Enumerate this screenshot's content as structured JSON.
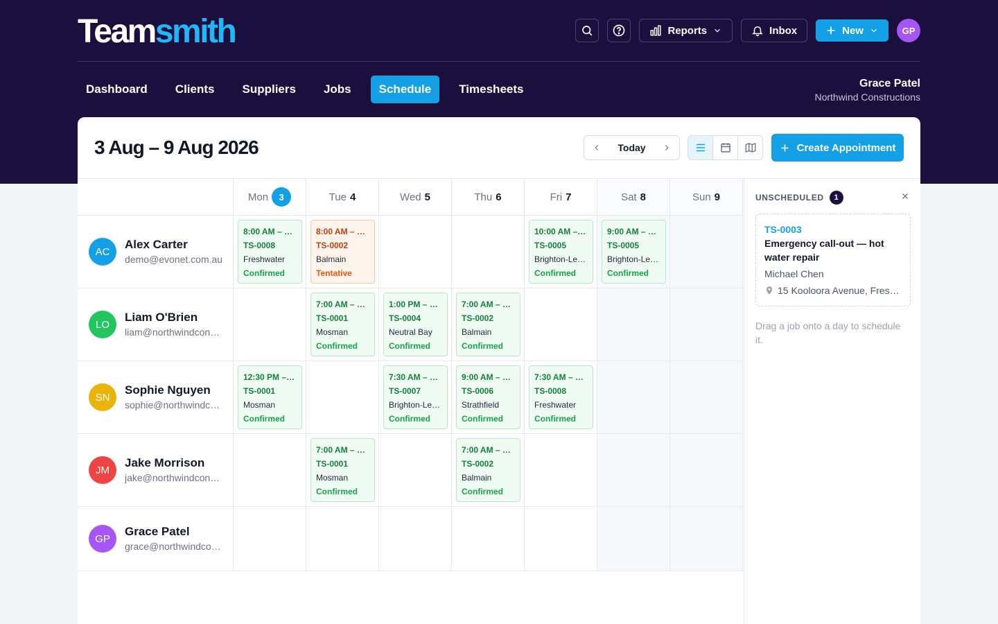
{
  "brand": {
    "part1": "Team",
    "part2": "smith"
  },
  "top_actions": {
    "reports_label": "Reports",
    "inbox_label": "Inbox",
    "new_label": "New",
    "avatar_initials": "GP"
  },
  "nav": {
    "items": [
      {
        "label": "Dashboard",
        "active": false
      },
      {
        "label": "Clients",
        "active": false
      },
      {
        "label": "Suppliers",
        "active": false
      },
      {
        "label": "Jobs",
        "active": false
      },
      {
        "label": "Schedule",
        "active": true
      },
      {
        "label": "Timesheets",
        "active": false
      }
    ]
  },
  "user": {
    "name": "Grace Patel",
    "org": "Northwind Constructions"
  },
  "schedule": {
    "range_title": "3 Aug – 9 Aug 2026",
    "today_label": "Today",
    "create_label": "Create Appointment",
    "days": [
      {
        "name": "Mon",
        "num": "3",
        "today": true,
        "weekend": false
      },
      {
        "name": "Tue",
        "num": "4",
        "today": false,
        "weekend": false
      },
      {
        "name": "Wed",
        "num": "5",
        "today": false,
        "weekend": false
      },
      {
        "name": "Thu",
        "num": "6",
        "today": false,
        "weekend": false
      },
      {
        "name": "Fri",
        "num": "7",
        "today": false,
        "weekend": false
      },
      {
        "name": "Sat",
        "num": "8",
        "today": false,
        "weekend": true
      },
      {
        "name": "Sun",
        "num": "9",
        "today": false,
        "weekend": true
      }
    ],
    "staff": [
      {
        "initials": "AC",
        "name": "Alex Carter",
        "email": "demo@evonet.com.au",
        "color": "#14a0e6",
        "cells": [
          {
            "time": "8:00 AM – 1…",
            "id": "TS-0008",
            "loc": "Freshwater",
            "status": "Confirmed",
            "tentative": false
          },
          {
            "time": "8:00 AM – …",
            "id": "TS-0002",
            "loc": "Balmain",
            "status": "Tentative",
            "tentative": true
          },
          null,
          null,
          {
            "time": "10:00 AM –…",
            "id": "TS-0005",
            "loc": "Brighton-Le…",
            "status": "Confirmed",
            "tentative": false
          },
          {
            "time": "9:00 AM – …",
            "id": "TS-0005",
            "loc": "Brighton-Le…",
            "status": "Confirmed",
            "tentative": false
          },
          null
        ]
      },
      {
        "initials": "LO",
        "name": "Liam O'Brien",
        "email": "liam@northwindcon…",
        "color": "#22c55e",
        "cells": [
          null,
          {
            "time": "7:00 AM – …",
            "id": "TS-0001",
            "loc": "Mosman",
            "status": "Confirmed",
            "tentative": false
          },
          {
            "time": "1:00 PM – …",
            "id": "TS-0004",
            "loc": "Neutral Bay",
            "status": "Confirmed",
            "tentative": false
          },
          {
            "time": "7:00 AM – …",
            "id": "TS-0002",
            "loc": "Balmain",
            "status": "Confirmed",
            "tentative": false
          },
          null,
          null,
          null
        ]
      },
      {
        "initials": "SN",
        "name": "Sophie Nguyen",
        "email": "sophie@northwindc…",
        "color": "#eab308",
        "cells": [
          {
            "time": "12:30 PM – …",
            "id": "TS-0001",
            "loc": "Mosman",
            "status": "Confirmed",
            "tentative": false
          },
          null,
          {
            "time": "7:30 AM – …",
            "id": "TS-0007",
            "loc": "Brighton-Le…",
            "status": "Confirmed",
            "tentative": false
          },
          {
            "time": "9:00 AM – …",
            "id": "TS-0006",
            "loc": "Strathfield",
            "status": "Confirmed",
            "tentative": false
          },
          {
            "time": "7:30 AM – …",
            "id": "TS-0008",
            "loc": "Freshwater",
            "status": "Confirmed",
            "tentative": false
          },
          null,
          null
        ]
      },
      {
        "initials": "JM",
        "name": "Jake Morrison",
        "email": "jake@northwindcon…",
        "color": "#ef4444",
        "cells": [
          null,
          {
            "time": "7:00 AM – …",
            "id": "TS-0001",
            "loc": "Mosman",
            "status": "Confirmed",
            "tentative": false
          },
          null,
          {
            "time": "7:00 AM – …",
            "id": "TS-0002",
            "loc": "Balmain",
            "status": "Confirmed",
            "tentative": false
          },
          null,
          null,
          null
        ]
      },
      {
        "initials": "GP",
        "name": "Grace Patel",
        "email": "grace@northwindco…",
        "color": "#a855f7",
        "cells": [
          null,
          null,
          null,
          null,
          null,
          null,
          null
        ]
      }
    ]
  },
  "unscheduled": {
    "title": "UNSCHEDULED",
    "count": "1",
    "job": {
      "id": "TS-0003",
      "title": "Emergency call-out — hot water repair",
      "client": "Michael Chen",
      "address": "15 Kooloora Avenue, Fres…"
    },
    "hint": "Drag a job onto a day to schedule it."
  },
  "colors": {
    "brand_dark": "#1b0f3e",
    "accent": "#14a0e6",
    "confirmed": "#16a34a",
    "tentative": "#ea580c"
  },
  "icons": [
    "search-icon",
    "help-icon",
    "bar-chart-icon",
    "bell-icon",
    "plus-icon",
    "chevron-down-icon",
    "chevron-left-icon",
    "chevron-right-icon",
    "list-view-icon",
    "calendar-view-icon",
    "map-view-icon",
    "close-icon",
    "map-pin-icon"
  ]
}
